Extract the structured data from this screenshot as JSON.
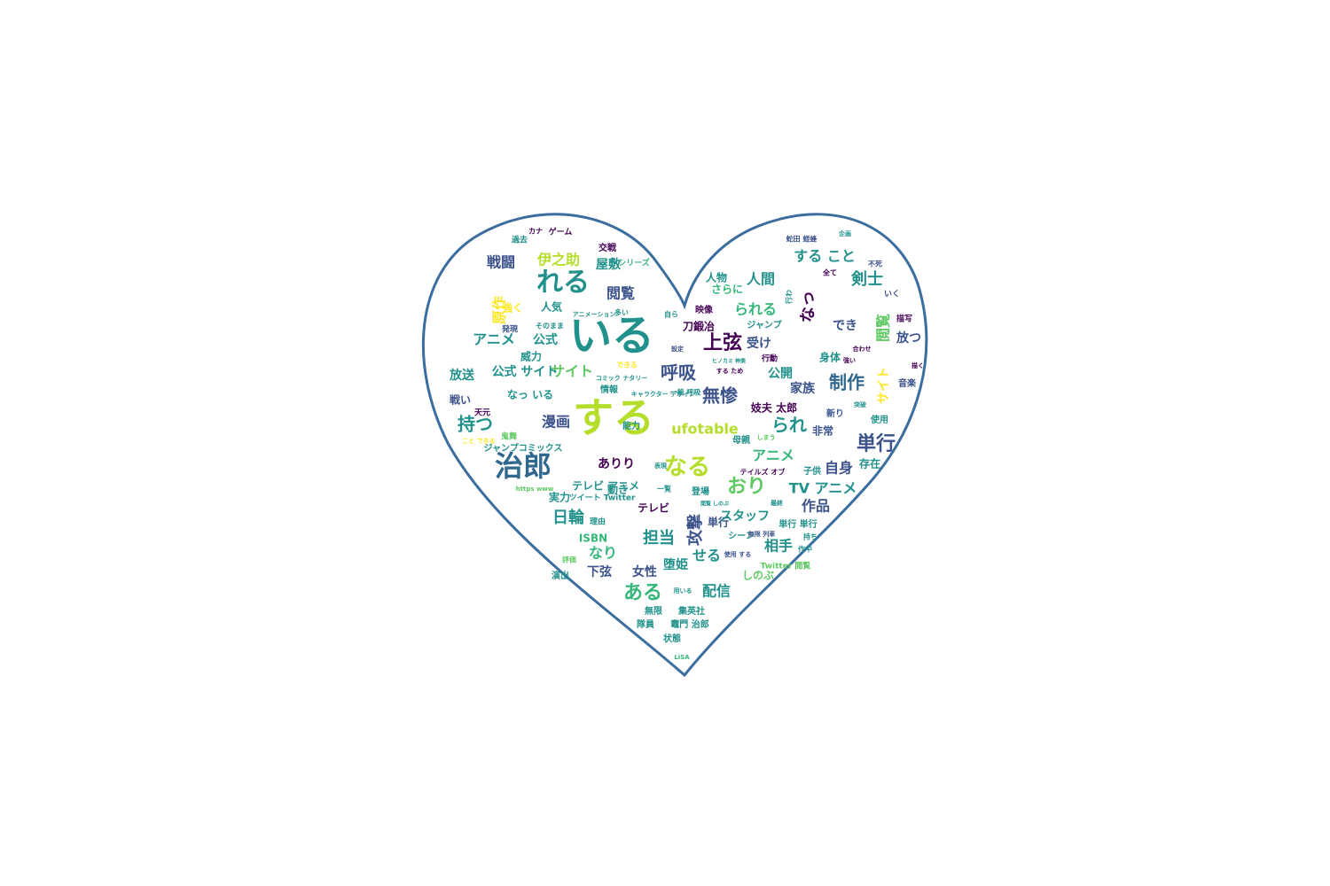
{
  "colors": {
    "background": "#ffffff",
    "outline": "#3b6e9e",
    "palette": [
      "#440154",
      "#3b528b",
      "#21918c",
      "#5ec962",
      "#fde725",
      "#31688e",
      "#35b779",
      "#b5de2b"
    ]
  },
  "words": [
    {
      "text": "いる",
      "color": "#21918c"
    },
    {
      "text": "する",
      "color": "#b5de2b"
    },
    {
      "text": "治郎",
      "color": "#31688e"
    },
    {
      "text": "れる",
      "color": "#21918c"
    },
    {
      "text": "上弦",
      "color": "#440154"
    },
    {
      "text": "なる",
      "color": "#b5de2b"
    },
    {
      "text": "単行",
      "color": "#3b528b"
    },
    {
      "text": "呼吸",
      "color": "#3b528b"
    },
    {
      "text": "無惨",
      "color": "#3b528b"
    },
    {
      "text": "ある",
      "color": "#35b779"
    },
    {
      "text": "おり",
      "color": "#5ec962"
    },
    {
      "text": "制作",
      "color": "#31688e"
    },
    {
      "text": "持つ",
      "color": "#21918c"
    },
    {
      "text": "られ",
      "color": "#21918c"
    },
    {
      "text": "戦闘",
      "color": "#3b528b"
    },
    {
      "text": "伊之助",
      "color": "#b5de2b"
    },
    {
      "text": "閲覧",
      "color": "#3b528b"
    },
    {
      "text": "剣士",
      "color": "#21918c"
    },
    {
      "text": "人間",
      "color": "#21918c"
    },
    {
      "text": "する こと",
      "color": "#21918c"
    },
    {
      "text": "られる",
      "color": "#35b779"
    },
    {
      "text": "なっ",
      "color": "#440154"
    },
    {
      "text": "アニメ",
      "color": "#21918c"
    },
    {
      "text": "公式",
      "color": "#21918c"
    },
    {
      "text": "サイト",
      "color": "#5ec962"
    },
    {
      "text": "漫画",
      "color": "#3b528b"
    },
    {
      "text": "日輪",
      "color": "#21918c"
    },
    {
      "text": "担当",
      "color": "#21918c"
    },
    {
      "text": "攻撃",
      "color": "#3b528b"
    },
    {
      "text": "せる",
      "color": "#21918c"
    },
    {
      "text": "配信",
      "color": "#21918c"
    },
    {
      "text": "なり",
      "color": "#35b779"
    },
    {
      "text": "女性",
      "color": "#3b528b"
    },
    {
      "text": "TV アニメ",
      "color": "#21918c"
    },
    {
      "text": "作品",
      "color": "#3b528b"
    },
    {
      "text": "相手",
      "color": "#21918c"
    },
    {
      "text": "自身",
      "color": "#3b528b"
    },
    {
      "text": "ufotable",
      "color": "#b5de2b"
    },
    {
      "text": "アニメ",
      "color": "#35b779"
    },
    {
      "text": "ありり",
      "color": "#440154"
    },
    {
      "text": "原作",
      "color": "#fde725"
    },
    {
      "text": "屋敷",
      "color": "#21918c"
    },
    {
      "text": "放送",
      "color": "#21918c"
    },
    {
      "text": "公式 サイト",
      "color": "#21918c"
    },
    {
      "text": "受け",
      "color": "#3b528b"
    },
    {
      "text": "でき",
      "color": "#3b528b"
    },
    {
      "text": "閲覧",
      "color": "#5ec962"
    },
    {
      "text": "サイト",
      "color": "#fde725"
    },
    {
      "text": "公開",
      "color": "#21918c"
    },
    {
      "text": "家族",
      "color": "#3b528b"
    },
    {
      "text": "放つ",
      "color": "#3b528b"
    },
    {
      "text": "存在",
      "color": "#21918c"
    },
    {
      "text": "単行",
      "color": "#3b528b"
    },
    {
      "text": "なっ いる",
      "color": "#21918c"
    },
    {
      "text": "さらに",
      "color": "#35b779"
    },
    {
      "text": "人物",
      "color": "#21918c"
    },
    {
      "text": "刀鍛冶",
      "color": "#440154"
    },
    {
      "text": "妓夫 太郎",
      "color": "#440154"
    },
    {
      "text": "非常",
      "color": "#3b528b"
    },
    {
      "text": "身体",
      "color": "#21918c"
    },
    {
      "text": "下弦",
      "color": "#3b528b"
    },
    {
      "text": "堕姫",
      "color": "#21918c"
    },
    {
      "text": "しのぶ",
      "color": "#5ec962"
    },
    {
      "text": "テレビ",
      "color": "#440154"
    },
    {
      "text": "スタッフ",
      "color": "#21918c"
    },
    {
      "text": "テレビ アニメ",
      "color": "#21918c"
    },
    {
      "text": "実力",
      "color": "#21918c"
    },
    {
      "text": "ISBN",
      "color": "#35b779"
    },
    {
      "text": "ジャンプコミックス",
      "color": "#21918c"
    },
    {
      "text": "戦い",
      "color": "#3b528b"
    },
    {
      "text": "強く",
      "color": "#fde725"
    },
    {
      "text": "人気",
      "color": "#21918c"
    },
    {
      "text": "威力",
      "color": "#21918c"
    },
    {
      "text": "交戦",
      "color": "#440154"
    },
    {
      "text": "映像",
      "color": "#440154"
    },
    {
      "text": "ジャンプ",
      "color": "#21918c"
    },
    {
      "text": "音楽",
      "color": "#3b528b"
    },
    {
      "text": "使用",
      "color": "#21918c"
    },
    {
      "text": "母親",
      "color": "#21918c"
    },
    {
      "text": "シーン",
      "color": "#21918c"
    },
    {
      "text": "新り",
      "color": "#3b528b"
    },
    {
      "text": "子供",
      "color": "#21918c"
    },
    {
      "text": "単行 単行",
      "color": "#21918c"
    },
    {
      "text": "登場",
      "color": "#21918c"
    },
    {
      "text": "能力",
      "color": "#21918c"
    },
    {
      "text": "動き",
      "color": "#21918c"
    },
    {
      "text": "情報",
      "color": "#21918c"
    },
    {
      "text": "集英社",
      "color": "#21918c"
    },
    {
      "text": "無限",
      "color": "#21918c"
    },
    {
      "text": "隊員",
      "color": "#21918c"
    },
    {
      "text": "竈門 治郎",
      "color": "#21918c"
    },
    {
      "text": "状態",
      "color": "#21918c"
    },
    {
      "text": "演出",
      "color": "#21918c"
    },
    {
      "text": "過去",
      "color": "#21918c"
    },
    {
      "text": "シリーズ",
      "color": "#35b779"
    },
    {
      "text": "ゲーム",
      "color": "#440154"
    },
    {
      "text": "カナ",
      "color": "#440154"
    },
    {
      "text": "いく",
      "color": "#3b528b"
    },
    {
      "text": "描写",
      "color": "#440154"
    },
    {
      "text": "発現",
      "color": "#3b528b"
    },
    {
      "text": "鬼舞",
      "color": "#5ec962"
    },
    {
      "text": "天元",
      "color": "#440154"
    },
    {
      "text": "不死",
      "color": "#3b528b"
    },
    {
      "text": "企画",
      "color": "#21918c"
    },
    {
      "text": "行動",
      "color": "#440154"
    },
    {
      "text": "理由",
      "color": "#21918c"
    },
    {
      "text": "ツイート Twitter",
      "color": "#21918c"
    },
    {
      "text": "キャラクター デザイン",
      "color": "#21918c"
    },
    {
      "text": "一覧",
      "color": "#21918c"
    },
    {
      "text": "自ら",
      "color": "#21918c"
    },
    {
      "text": "設定",
      "color": "#3b528b"
    },
    {
      "text": "多い",
      "color": "#21918c"
    },
    {
      "text": "アニメーション",
      "color": "#21918c"
    },
    {
      "text": "そのまま",
      "color": "#21918c"
    },
    {
      "text": "できる",
      "color": "#fde725"
    },
    {
      "text": "こと できる",
      "color": "#fde725"
    },
    {
      "text": "https www",
      "color": "#5ec962"
    },
    {
      "text": "テイルズ オブ",
      "color": "#440154"
    },
    {
      "text": "Twitter 閲覧",
      "color": "#5ec962"
    },
    {
      "text": "使用 する",
      "color": "#3b528b"
    },
    {
      "text": "全て",
      "color": "#440154"
    },
    {
      "text": "蛇田 蛭蜂",
      "color": "#3b528b"
    },
    {
      "text": "する ため",
      "color": "#440154"
    },
    {
      "text": "最終",
      "color": "#21918c"
    },
    {
      "text": "表現",
      "color": "#21918c"
    },
    {
      "text": "閲覧 しのぶ",
      "color": "#21918c"
    },
    {
      "text": "ヒノカミ 神楽",
      "color": "#21918c"
    },
    {
      "text": "コミック ナタリー",
      "color": "#21918c"
    },
    {
      "text": "一般 呼吸",
      "color": "#21918c"
    },
    {
      "text": "描く",
      "color": "#440154"
    },
    {
      "text": "強い",
      "color": "#440154"
    },
    {
      "text": "合わせ",
      "color": "#440154"
    },
    {
      "text": "突破",
      "color": "#21918c"
    },
    {
      "text": "評価",
      "color": "#5ec962"
    },
    {
      "text": "LiSA",
      "color": "#35b779"
    },
    {
      "text": "用いる",
      "color": "#21918c"
    },
    {
      "text": "持ち",
      "color": "#21918c"
    },
    {
      "text": "作中",
      "color": "#21918c"
    },
    {
      "text": "行わ",
      "color": "#21918c"
    },
    {
      "text": "無限 列車",
      "color": "#3b528b"
    },
    {
      "text": "しまう",
      "color": "#5ec962"
    },
    {
      "text": "えん",
      "color": "#21918c"
    }
  ]
}
